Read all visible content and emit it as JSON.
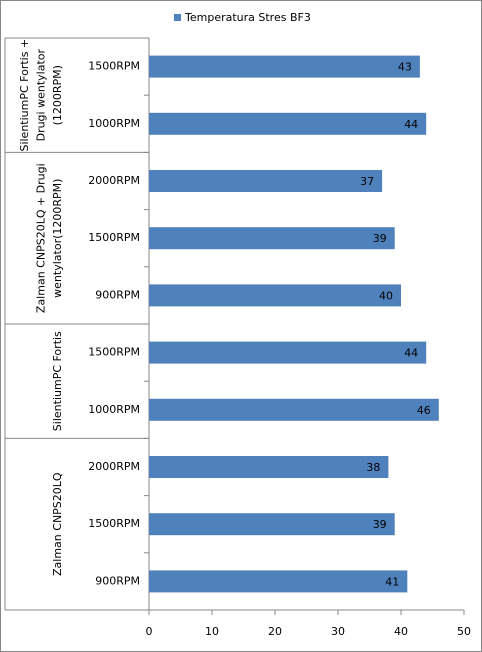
{
  "chart_data": {
    "type": "bar",
    "orientation": "horizontal",
    "groups": [
      {
        "label": [
          "SilentiumPC Fortis +",
          "Drugi wentylator",
          "(1200RPM)"
        ],
        "categories": [
          "1500RPM",
          "1000RPM"
        ]
      },
      {
        "label": [
          "Zalman CNPS20LQ + Drugi",
          "wentylator(1200RPM)"
        ],
        "categories": [
          "2000RPM",
          "1500RPM",
          "900RPM"
        ]
      },
      {
        "label": [
          "SilentiumPC Fortis"
        ],
        "categories": [
          "1500RPM",
          "1000RPM"
        ]
      },
      {
        "label": [
          "Zalman CNPS20LQ"
        ],
        "categories": [
          "2000RPM",
          "1500RPM",
          "900RPM"
        ]
      }
    ],
    "series": [
      {
        "name": "Temperatura Stres BF3",
        "color": "#4f81bd",
        "values": [
          43,
          44,
          37,
          39,
          40,
          44,
          46,
          38,
          39,
          41
        ]
      }
    ],
    "xlim": [
      0,
      50
    ],
    "xticks": [
      0,
      10,
      20,
      30,
      40,
      50
    ],
    "grid": false,
    "legend": "top"
  }
}
